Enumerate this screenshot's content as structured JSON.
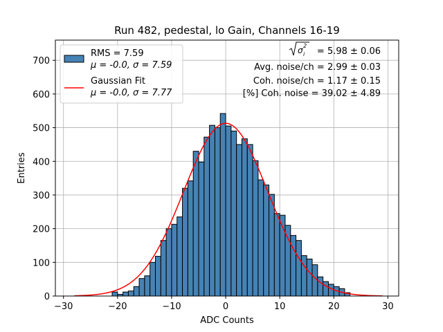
{
  "chart_data": {
    "type": "bar",
    "title": "Run 482, pedestal, lo Gain, Channels 16-19",
    "xlabel": "ADC Counts",
    "ylabel": "Entries",
    "xlim": [
      -31.5,
      32
    ],
    "ylim": [
      0,
      760
    ],
    "xticks": [
      -30,
      -20,
      -10,
      0,
      10,
      20,
      30
    ],
    "yticks": [
      0,
      100,
      200,
      300,
      400,
      500,
      600,
      700
    ],
    "grid": true,
    "bin_width": 1,
    "bins": [
      {
        "x0": -21,
        "count": 12
      },
      {
        "x0": -20,
        "count": 5
      },
      {
        "x0": -19,
        "count": 12
      },
      {
        "x0": -18,
        "count": 15
      },
      {
        "x0": -17,
        "count": 28
      },
      {
        "x0": -16,
        "count": 52
      },
      {
        "x0": -15,
        "count": 60
      },
      {
        "x0": -14,
        "count": 100
      },
      {
        "x0": -13,
        "count": 118
      },
      {
        "x0": -12,
        "count": 165
      },
      {
        "x0": -11,
        "count": 200
      },
      {
        "x0": -10,
        "count": 213
      },
      {
        "x0": -9,
        "count": 235
      },
      {
        "x0": -8,
        "count": 320
      },
      {
        "x0": -7,
        "count": 342
      },
      {
        "x0": -6,
        "count": 430
      },
      {
        "x0": -5,
        "count": 398
      },
      {
        "x0": -4,
        "count": 472
      },
      {
        "x0": -3,
        "count": 507
      },
      {
        "x0": -2,
        "count": 500
      },
      {
        "x0": -1,
        "count": 542
      },
      {
        "x0": 0,
        "count": 505
      },
      {
        "x0": 1,
        "count": 490
      },
      {
        "x0": 2,
        "count": 450
      },
      {
        "x0": 3,
        "count": 467
      },
      {
        "x0": 4,
        "count": 450
      },
      {
        "x0": 5,
        "count": 402
      },
      {
        "x0": 6,
        "count": 345
      },
      {
        "x0": 7,
        "count": 330
      },
      {
        "x0": 8,
        "count": 302
      },
      {
        "x0": 9,
        "count": 245
      },
      {
        "x0": 10,
        "count": 240
      },
      {
        "x0": 11,
        "count": 210
      },
      {
        "x0": 12,
        "count": 180
      },
      {
        "x0": 13,
        "count": 165
      },
      {
        "x0": 14,
        "count": 120
      },
      {
        "x0": 15,
        "count": 110
      },
      {
        "x0": 16,
        "count": 93
      },
      {
        "x0": 17,
        "count": 57
      },
      {
        "x0": 18,
        "count": 43
      },
      {
        "x0": 19,
        "count": 35
      },
      {
        "x0": 20,
        "count": 28
      },
      {
        "x0": 21,
        "count": 22
      },
      {
        "x0": 22,
        "count": 10
      }
    ],
    "fit": {
      "type": "gaussian",
      "mu": 0.0,
      "sigma": 7.77,
      "amplitude": 513,
      "x_range": [
        -28,
        29
      ]
    },
    "legend_position": "upper-left",
    "legend": [
      {
        "label_line1": "RMS = 7.59",
        "label_line2": "μ = -0.0, σ = 7.59",
        "kind": "patch"
      },
      {
        "label_line1": "Gaussian Fit",
        "label_line2": "μ = -0.0, σ = 7.77",
        "kind": "line"
      }
    ],
    "annotations": {
      "total_noise": "= 5.98 ± 0.06",
      "avg_noise": "Avg. noise/ch = 2.99 ± 0.03",
      "coh_noise": "Coh. noise/ch = 1.17 ± 0.15",
      "coh_pct": "[%] Coh. noise = 39.02 ± 4.89"
    }
  },
  "colors": {
    "bar_fill": "#4682b4",
    "bar_edge": "#000000",
    "fit_line": "#ff0000",
    "grid": "#b0b0b0"
  }
}
